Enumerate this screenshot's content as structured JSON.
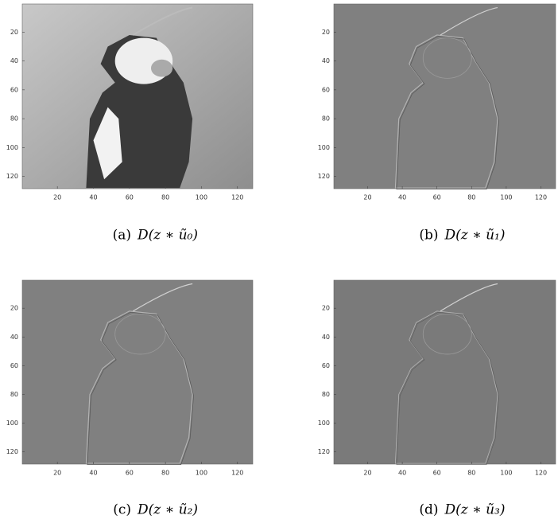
{
  "figure": {
    "axes": {
      "xlim": [
        0.5,
        128.5
      ],
      "ylim": [
        0.5,
        128.5
      ],
      "xticks": [
        20,
        40,
        60,
        80,
        100,
        120
      ],
      "yticks": [
        20,
        40,
        60,
        80,
        100,
        120
      ]
    },
    "panels": [
      {
        "label": "(a)",
        "formula": "D(z ∗ ũ₀)"
      },
      {
        "label": "(b)",
        "formula": "D(z ∗ ũ₁)"
      },
      {
        "label": "(c)",
        "formula": "D(z ∗ ũ₂)"
      },
      {
        "label": "(d)",
        "formula": "D(z ∗ ũ₃)"
      }
    ]
  }
}
